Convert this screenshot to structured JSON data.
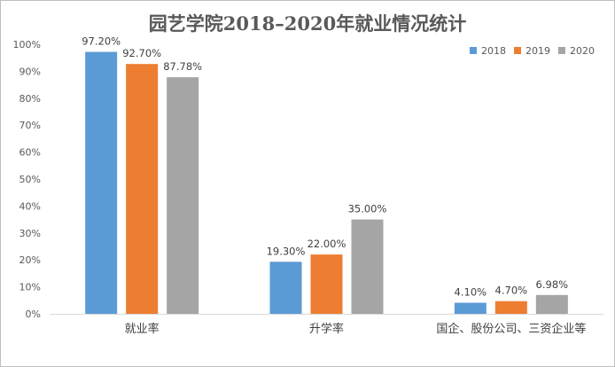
{
  "chart_data": {
    "type": "bar",
    "title": "园艺学院2018–2020年就业情况统计",
    "categories": [
      "就业率",
      "升学率",
      "国企、股份公司、三资企业等"
    ],
    "series": [
      {
        "name": "2018",
        "color": "#5B9BD5",
        "values": [
          97.2,
          19.3,
          4.1
        ],
        "labels": [
          "97.20%",
          "19.30%",
          "4.10%"
        ]
      },
      {
        "name": "2019",
        "color": "#ED7D31",
        "values": [
          92.7,
          22.0,
          4.7
        ],
        "labels": [
          "92.70%",
          "22.00%",
          "4.70%"
        ]
      },
      {
        "name": "2020",
        "color": "#A5A5A5",
        "values": [
          87.78,
          35.0,
          6.98
        ],
        "labels": [
          "87.78%",
          "35.00%",
          "6.98%"
        ]
      }
    ],
    "ylim": [
      0,
      100
    ],
    "yticks": [
      0,
      10,
      20,
      30,
      40,
      50,
      60,
      70,
      80,
      90,
      100
    ],
    "ytick_labels": [
      "0%",
      "10%",
      "20%",
      "30%",
      "40%",
      "50%",
      "60%",
      "70%",
      "80%",
      "90%",
      "100%"
    ],
    "xlabel": "",
    "ylabel": "",
    "grid": false,
    "legend_position": "top-right"
  }
}
